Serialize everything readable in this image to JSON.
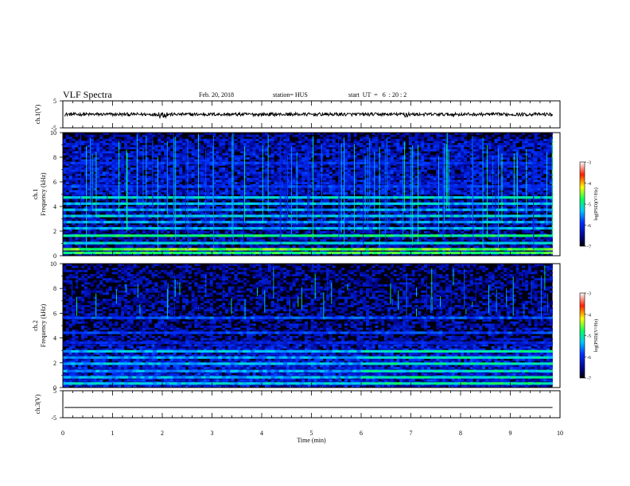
{
  "header": {
    "title": "VLF Spectra",
    "date": "Feb. 20, 2018",
    "station": "station= HUS",
    "start_ut": "start  UT  =   6  : 20 : 2"
  },
  "colors": {
    "background": "#000010",
    "axis": "#000000"
  },
  "chart_data": [
    {
      "type": "line",
      "panel": "ch1-waveform",
      "ylabel": "ch.1(V)",
      "y_ticks": [
        "5",
        "-5"
      ],
      "ylim": [
        -5,
        5
      ],
      "xlim": [
        0,
        10
      ],
      "data_extent_x": [
        0,
        9.85
      ],
      "baseline": 0,
      "amplitude_approx": 0.6
    },
    {
      "type": "heatmap",
      "panel": "ch1-spectrogram",
      "ylabel": "ch.1 Frequency (kHz)",
      "y_ticks": [
        "0",
        "2",
        "4",
        "6",
        "8",
        "10"
      ],
      "ylim": [
        0,
        10
      ],
      "xlim": [
        0,
        10
      ],
      "data_extent_x": [
        0,
        9.85
      ],
      "colorbar": {
        "label": "log(PSD)(V²/Hz)",
        "ticks": [
          "-3",
          "-4",
          "-5",
          "-6",
          "-7"
        ],
        "range": [
          -7,
          -3
        ]
      },
      "bands_khz": [
        {
          "freq": 0.2,
          "level": -4.8
        },
        {
          "freq": 0.5,
          "level": -4.6
        },
        {
          "freq": 1.0,
          "level": -5.2
        },
        {
          "freq": 1.6,
          "level": -4.9
        },
        {
          "freq": 2.2,
          "level": -5.4
        },
        {
          "freq": 2.7,
          "level": -5.5
        },
        {
          "freq": 3.2,
          "level": -5.3
        },
        {
          "freq": 3.7,
          "level": -5.5
        },
        {
          "freq": 4.2,
          "level": -5.3
        },
        {
          "freq": 4.7,
          "level": -5.2
        },
        {
          "freq": 5.6,
          "level": -5.9
        },
        {
          "freq": 7.5,
          "level": -6.0
        }
      ]
    },
    {
      "type": "heatmap",
      "panel": "ch2-spectrogram",
      "ylabel": "ch.2 Frequency (kHz)",
      "y_ticks": [
        "0",
        "2",
        "4",
        "6",
        "8",
        "10"
      ],
      "ylim": [
        0,
        10
      ],
      "xlim": [
        0,
        10
      ],
      "data_extent_x": [
        0,
        9.85
      ],
      "colorbar": {
        "label": "log(PSD)(V²/Hz)",
        "ticks": [
          "-3",
          "-4",
          "-5",
          "-6",
          "-7"
        ],
        "range": [
          -7,
          -3
        ]
      },
      "bands_khz": [
        {
          "freq": 0.3,
          "level": -5.3
        },
        {
          "freq": 0.8,
          "level": -5.4
        },
        {
          "freq": 1.3,
          "level": -5.5
        },
        {
          "freq": 1.9,
          "level": -5.4
        },
        {
          "freq": 2.4,
          "level": -5.5
        },
        {
          "freq": 2.9,
          "level": -5.4
        },
        {
          "freq": 3.6,
          "level": -6.1
        },
        {
          "freq": 4.4,
          "level": -5.9
        },
        {
          "freq": 5.6,
          "level": -5.8
        }
      ]
    },
    {
      "type": "line",
      "panel": "ch3-waveform",
      "ylabel": "ch.3(V)",
      "y_ticks": [
        "5",
        "-5"
      ],
      "ylim": [
        -5,
        5
      ],
      "xlim": [
        0,
        10
      ],
      "data_extent_x": [
        0,
        9.85
      ],
      "baseline": -1.2,
      "amplitude_approx": 0.0
    }
  ],
  "x_axis": {
    "label": "Time (min)",
    "ticks": [
      "0",
      "1",
      "2",
      "3",
      "4",
      "5",
      "6",
      "7",
      "8",
      "9",
      "10"
    ],
    "range": [
      0,
      10
    ]
  }
}
